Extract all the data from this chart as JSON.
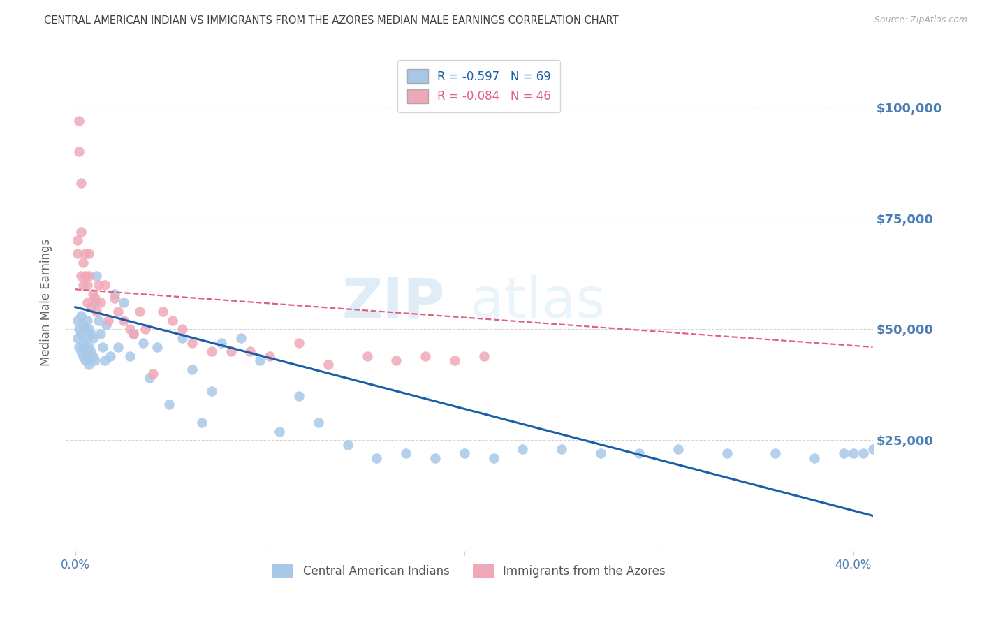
{
  "title": "CENTRAL AMERICAN INDIAN VS IMMIGRANTS FROM THE AZORES MEDIAN MALE EARNINGS CORRELATION CHART",
  "source": "Source: ZipAtlas.com",
  "ylabel": "Median Male Earnings",
  "xlabel_ticks": [
    "0.0%",
    "",
    "",
    "",
    "40.0%"
  ],
  "xlabel_vals": [
    0.0,
    0.1,
    0.2,
    0.3,
    0.4
  ],
  "ytick_labels": [
    "$25,000",
    "$50,000",
    "$75,000",
    "$100,000"
  ],
  "ytick_vals": [
    25000,
    50000,
    75000,
    100000
  ],
  "xlim": [
    -0.005,
    0.41
  ],
  "ylim": [
    0,
    112000
  ],
  "blue_R": "-0.597",
  "blue_N": "69",
  "pink_R": "-0.084",
  "pink_N": "46",
  "blue_color": "#a8c8e8",
  "pink_color": "#f0a8b8",
  "blue_line_color": "#1a5fa8",
  "pink_line_color": "#e06080",
  "blue_label": "Central American Indians",
  "pink_label": "Immigrants from the Azores",
  "watermark_zip": "ZIP",
  "watermark_atlas": "atlas",
  "background_color": "#ffffff",
  "grid_color": "#cccccc",
  "axis_label_color": "#4a7cb5",
  "title_color": "#404040",
  "blue_scatter_x": [
    0.001,
    0.001,
    0.002,
    0.002,
    0.003,
    0.003,
    0.003,
    0.004,
    0.004,
    0.004,
    0.005,
    0.005,
    0.005,
    0.006,
    0.006,
    0.006,
    0.007,
    0.007,
    0.007,
    0.008,
    0.008,
    0.009,
    0.009,
    0.01,
    0.01,
    0.011,
    0.012,
    0.013,
    0.014,
    0.015,
    0.016,
    0.018,
    0.02,
    0.022,
    0.025,
    0.028,
    0.03,
    0.035,
    0.038,
    0.042,
    0.048,
    0.055,
    0.06,
    0.065,
    0.07,
    0.075,
    0.085,
    0.095,
    0.105,
    0.115,
    0.125,
    0.14,
    0.155,
    0.17,
    0.185,
    0.2,
    0.215,
    0.23,
    0.25,
    0.27,
    0.29,
    0.31,
    0.335,
    0.36,
    0.38,
    0.395,
    0.4,
    0.405,
    0.41
  ],
  "blue_scatter_y": [
    52000,
    48000,
    50000,
    46000,
    53000,
    49000,
    45000,
    51000,
    47000,
    44000,
    50000,
    46000,
    43000,
    52000,
    48000,
    44000,
    50000,
    46000,
    42000,
    49000,
    45000,
    48000,
    44000,
    56000,
    43000,
    62000,
    52000,
    49000,
    46000,
    43000,
    51000,
    44000,
    58000,
    46000,
    56000,
    44000,
    49000,
    47000,
    39000,
    46000,
    33000,
    48000,
    41000,
    29000,
    36000,
    47000,
    48000,
    43000,
    27000,
    35000,
    29000,
    24000,
    21000,
    22000,
    21000,
    22000,
    21000,
    23000,
    23000,
    22000,
    22000,
    23000,
    22000,
    22000,
    21000,
    22000,
    22000,
    22000,
    23000
  ],
  "pink_scatter_x": [
    0.001,
    0.001,
    0.002,
    0.002,
    0.003,
    0.003,
    0.003,
    0.004,
    0.004,
    0.005,
    0.005,
    0.006,
    0.006,
    0.007,
    0.007,
    0.008,
    0.009,
    0.01,
    0.011,
    0.012,
    0.013,
    0.015,
    0.017,
    0.02,
    0.022,
    0.025,
    0.028,
    0.03,
    0.033,
    0.036,
    0.04,
    0.045,
    0.05,
    0.055,
    0.06,
    0.07,
    0.08,
    0.09,
    0.1,
    0.115,
    0.13,
    0.15,
    0.165,
    0.18,
    0.195,
    0.21
  ],
  "pink_scatter_y": [
    70000,
    67000,
    97000,
    90000,
    83000,
    72000,
    62000,
    65000,
    60000,
    67000,
    62000,
    60000,
    56000,
    67000,
    62000,
    55000,
    58000,
    57000,
    54000,
    60000,
    56000,
    60000,
    52000,
    57000,
    54000,
    52000,
    50000,
    49000,
    54000,
    50000,
    40000,
    54000,
    52000,
    50000,
    47000,
    45000,
    45000,
    45000,
    44000,
    47000,
    42000,
    44000,
    43000,
    44000,
    43000,
    44000
  ],
  "blue_line_x": [
    0.0,
    0.41
  ],
  "blue_line_y": [
    55000,
    8000
  ],
  "pink_line_x": [
    0.0,
    0.41
  ],
  "pink_line_y": [
    59000,
    46000
  ]
}
